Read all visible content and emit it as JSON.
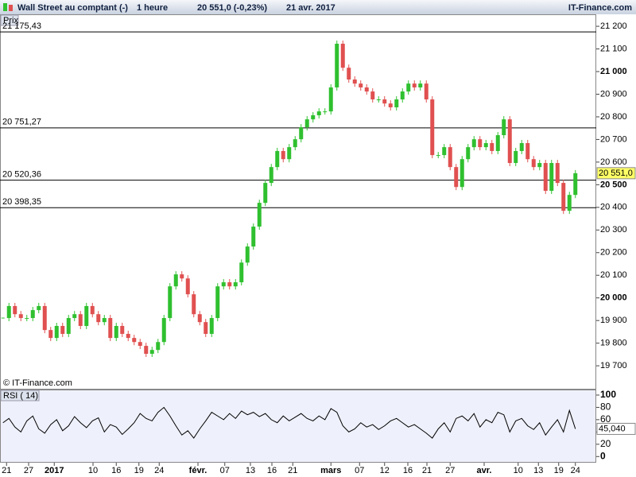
{
  "header": {
    "instrument": "Wall Street au comptant (-)",
    "period": "1 heure",
    "quote": "20 551,0 (-0,23%)",
    "date": "21 avr. 2017",
    "brand": "IT-Finance.com"
  },
  "chart_data": [
    {
      "type": "candle",
      "panel_label": "Prix",
      "watermark": "© IT-Finance.com",
      "up_color": "#2fc02f",
      "down_color": "#e05050",
      "xlim": [
        -0.5,
        99.5
      ],
      "ylim": [
        19595,
        21253
      ],
      "values": [
        19911,
        19964,
        19928,
        19911,
        19911,
        19946,
        19964,
        19858,
        19823,
        19876,
        19841,
        19911,
        19928,
        19876,
        19964,
        19928,
        19893,
        19911,
        19823,
        19876,
        19841,
        19823,
        19805,
        19788,
        19753,
        19770,
        19805,
        19911,
        20051,
        20104,
        20086,
        20016,
        19928,
        19893,
        19841,
        19911,
        20051,
        20069,
        20051,
        20069,
        20156,
        20227,
        20315,
        20420,
        20508,
        20578,
        20649,
        20613,
        20666,
        20701,
        20754,
        20789,
        20807,
        20824,
        20824,
        20930,
        21123,
        21017,
        20965,
        20947,
        20930,
        20912,
        20877,
        20877,
        20859,
        20842,
        20877,
        20912,
        20947,
        20930,
        20947,
        20877,
        20631,
        20631,
        20666,
        20578,
        20490,
        20613,
        20666,
        20701,
        20666,
        20684,
        20649,
        20719,
        20789,
        20596,
        20649,
        20684,
        20613,
        20578,
        20596,
        20473,
        20596,
        20508,
        20385,
        20455,
        20551
      ],
      "current_value": {
        "value": 20551,
        "label": "20 551,0"
      },
      "levels": [
        {
          "value": 21175.43,
          "label": "21 175,43"
        },
        {
          "value": 20751.27,
          "label": "20 751,27"
        },
        {
          "value": 20520.36,
          "label": "20 520,36"
        },
        {
          "value": 20398.35,
          "label": "20 398,35"
        }
      ],
      "yticks": [
        {
          "value": 19700,
          "label": "19 700"
        },
        {
          "value": 19800,
          "label": "19 800"
        },
        {
          "value": 19900,
          "label": "19 900"
        },
        {
          "value": 20000,
          "label": "20 000",
          "bold": true
        },
        {
          "value": 20100,
          "label": "20 100"
        },
        {
          "value": 20200,
          "label": "20 200"
        },
        {
          "value": 20300,
          "label": "20 300"
        },
        {
          "value": 20400,
          "label": "20 400"
        },
        {
          "value": 20500,
          "label": "20 500",
          "bold": true
        },
        {
          "value": 20600,
          "label": "20 600"
        },
        {
          "value": 20700,
          "label": "20 700"
        },
        {
          "value": 20800,
          "label": "20 800"
        },
        {
          "value": 20900,
          "label": "20 900"
        },
        {
          "value": 21000,
          "label": "21 000",
          "bold": true
        },
        {
          "value": 21100,
          "label": "21 100"
        },
        {
          "value": 21200,
          "label": "21 200"
        }
      ]
    },
    {
      "type": "line",
      "panel_label": "RSI ( 14)",
      "color": "#000000",
      "xlim": [
        -0.5,
        99.5
      ],
      "ylim": [
        -10,
        109
      ],
      "values": [
        55,
        62,
        48,
        40,
        58,
        66,
        45,
        38,
        52,
        60,
        42,
        50,
        65,
        55,
        47,
        58,
        63,
        40,
        52,
        48,
        36,
        45,
        55,
        70,
        62,
        58,
        72,
        80,
        66,
        50,
        35,
        42,
        30,
        45,
        58,
        72,
        66,
        60,
        70,
        62,
        74,
        68,
        72,
        65,
        70,
        60,
        55,
        66,
        58,
        64,
        70,
        62,
        58,
        66,
        60,
        78,
        72,
        50,
        40,
        45,
        55,
        48,
        52,
        44,
        50,
        58,
        62,
        55,
        48,
        52,
        45,
        38,
        30,
        45,
        55,
        40,
        62,
        66,
        58,
        70,
        48,
        60,
        55,
        72,
        68,
        40,
        58,
        62,
        50,
        44,
        55,
        35,
        48,
        60,
        40,
        75,
        45.04
      ],
      "current_value": {
        "value": 45.04,
        "label": "45,040"
      },
      "yticks": [
        0,
        20,
        40,
        60,
        80,
        100
      ],
      "xticks": [
        {
          "value": 0.6,
          "label": "21"
        },
        {
          "value": 4.3,
          "label": "27"
        },
        {
          "value": 8.6,
          "label": "2017",
          "bold": true
        },
        {
          "value": 15.1,
          "label": "10"
        },
        {
          "value": 19,
          "label": "16"
        },
        {
          "value": 22.8,
          "label": "19"
        },
        {
          "value": 26.2,
          "label": "24"
        },
        {
          "value": 32.7,
          "label": "févr.",
          "bold": true
        },
        {
          "value": 37.2,
          "label": "07"
        },
        {
          "value": 41.5,
          "label": "13"
        },
        {
          "value": 45.1,
          "label": "16"
        },
        {
          "value": 48.6,
          "label": "21"
        },
        {
          "value": 55,
          "label": "mars",
          "bold": true
        },
        {
          "value": 59.8,
          "label": "07"
        },
        {
          "value": 64,
          "label": "12"
        },
        {
          "value": 67.9,
          "label": "16"
        },
        {
          "value": 71.1,
          "label": "21"
        },
        {
          "value": 75,
          "label": "27"
        },
        {
          "value": 80.7,
          "label": "avr.",
          "bold": true
        },
        {
          "value": 86.4,
          "label": "10"
        },
        {
          "value": 89.8,
          "label": "13"
        },
        {
          "value": 93.2,
          "label": "19"
        },
        {
          "value": 96,
          "label": "24"
        }
      ]
    }
  ]
}
